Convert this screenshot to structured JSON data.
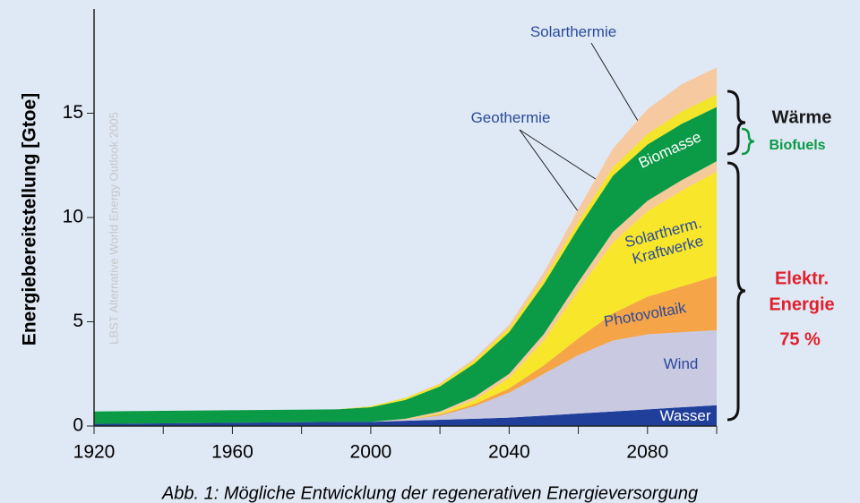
{
  "chart_data": {
    "type": "stacked_area",
    "ylabel": "Energiebereitstellung  [Gtoe]",
    "caption": "Abb. 1: Mögliche Entwicklung der regenerativen Energieversorgung",
    "watermark": "LBST Alternative World Energy Outlook 2005",
    "x": [
      1920,
      1990,
      2000,
      2010,
      2020,
      2030,
      2040,
      2050,
      2060,
      2070,
      2080,
      2090,
      2100
    ],
    "xlim": [
      1920,
      2100
    ],
    "xticks": [
      1920,
      1960,
      2000,
      2040,
      2080
    ],
    "xminor": [
      1940,
      1980,
      2020,
      2060,
      2100
    ],
    "ylim": [
      0,
      20
    ],
    "yticks": [
      0,
      5,
      10,
      15
    ],
    "series": [
      {
        "name": "Wasser",
        "color": "#1f3f9a",
        "values": [
          0.1,
          0.2,
          0.2,
          0.25,
          0.3,
          0.35,
          0.4,
          0.5,
          0.6,
          0.7,
          0.8,
          0.9,
          1.0
        ]
      },
      {
        "name": "Wind",
        "color": "#c9c9e2",
        "values": [
          0,
          0,
          0,
          0.05,
          0.2,
          0.6,
          1.2,
          2.0,
          2.8,
          3.4,
          3.6,
          3.6,
          3.6
        ]
      },
      {
        "name": "Photovoltaik",
        "color": "#f5a447",
        "values": [
          0,
          0,
          0,
          0,
          0.05,
          0.1,
          0.2,
          0.4,
          0.8,
          1.3,
          1.8,
          2.2,
          2.6
        ]
      },
      {
        "name": "Solartherm. Kraftwerke",
        "color": "#f7e62a",
        "values": [
          0,
          0,
          0,
          0,
          0.05,
          0.2,
          0.5,
          1.2,
          2.3,
          3.4,
          4.1,
          4.6,
          5.0
        ]
      },
      {
        "name": "Geothermie",
        "color": "#f5c99a",
        "values": [
          0,
          0,
          0,
          0.05,
          0.1,
          0.15,
          0.2,
          0.3,
          0.4,
          0.5,
          0.5,
          0.5,
          0.5
        ]
      },
      {
        "name": "Biomasse",
        "color": "#0b9a46",
        "values": [
          0.6,
          0.6,
          0.7,
          0.9,
          1.2,
          1.6,
          2.0,
          2.4,
          2.6,
          2.7,
          2.7,
          2.7,
          2.6
        ]
      },
      {
        "name": "Solarthermie",
        "color": "#f2e52a",
        "values": [
          0,
          0,
          0.05,
          0.1,
          0.1,
          0.15,
          0.2,
          0.25,
          0.3,
          0.4,
          0.5,
          0.6,
          0.6
        ]
      },
      {
        "name": "Geothermie",
        "color": "#f6c9a0",
        "values": [
          0,
          0,
          0,
          0,
          0.05,
          0.1,
          0.15,
          0.3,
          0.6,
          0.9,
          1.2,
          1.3,
          1.3
        ]
      }
    ],
    "annotations": {
      "waerme": "Wärme",
      "biofuels": "Biofuels",
      "elektr": [
        "Elektr.",
        "Energie"
      ],
      "share": "75 %"
    }
  }
}
